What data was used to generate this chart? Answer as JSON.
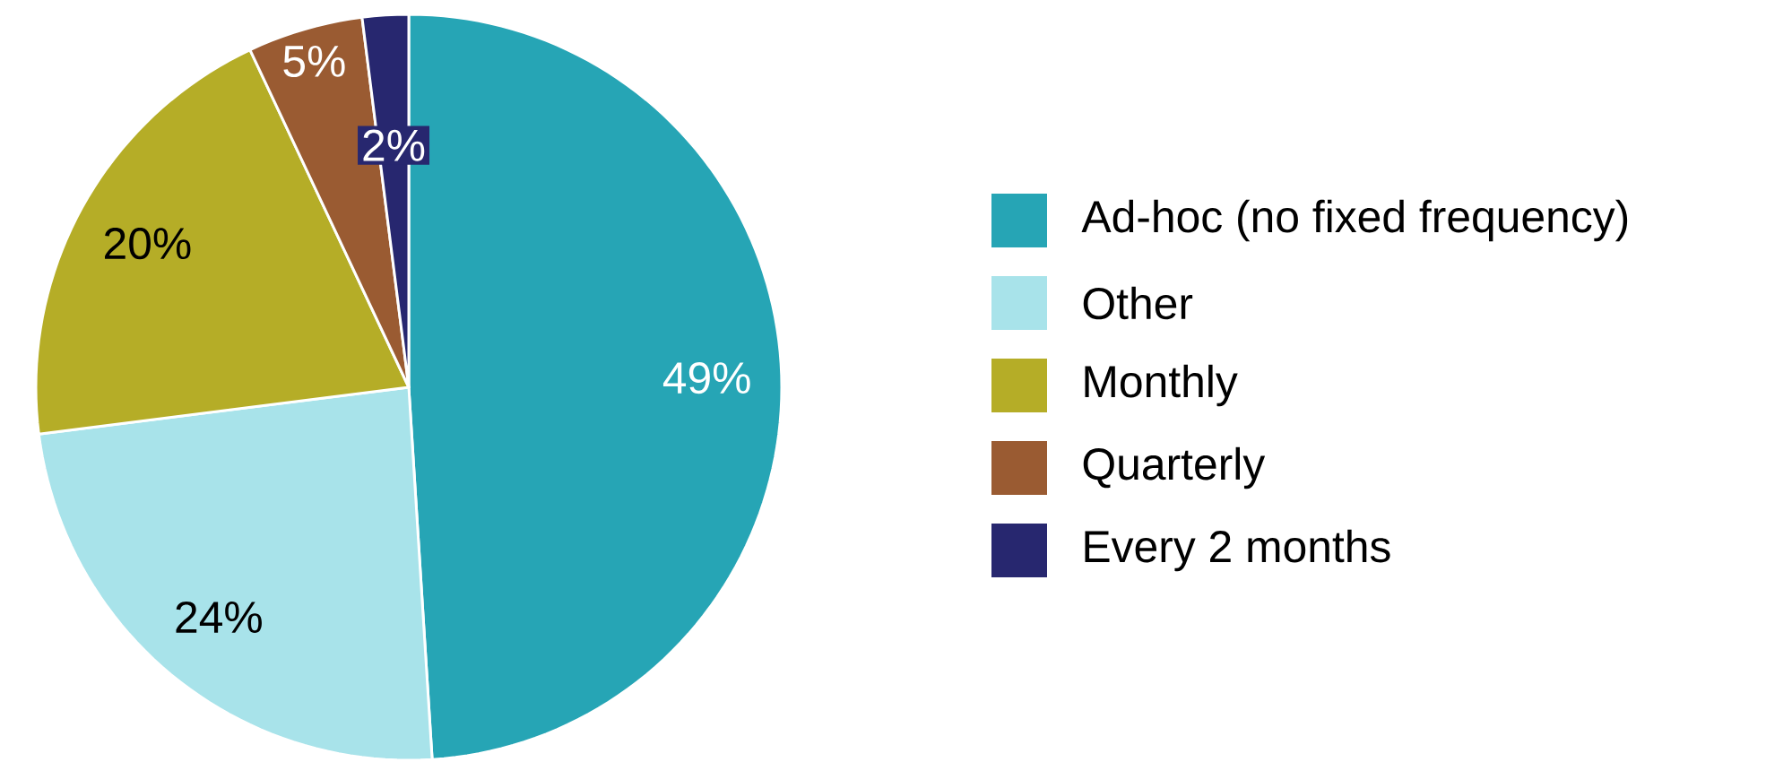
{
  "chart_data": {
    "type": "pie",
    "categories": [
      "Ad-hoc (no fixed frequency)",
      "Other",
      "Monthly",
      "Quarterly",
      "Every 2 months"
    ],
    "values": [
      49,
      24,
      20,
      5,
      2
    ],
    "colors": [
      "#26a5b5",
      "#a8e3ea",
      "#b5ad27",
      "#9a5b32",
      "#27276f"
    ],
    "value_labels": [
      "49%",
      "24%",
      "20%",
      "5%",
      "2%"
    ],
    "legend": "right"
  }
}
